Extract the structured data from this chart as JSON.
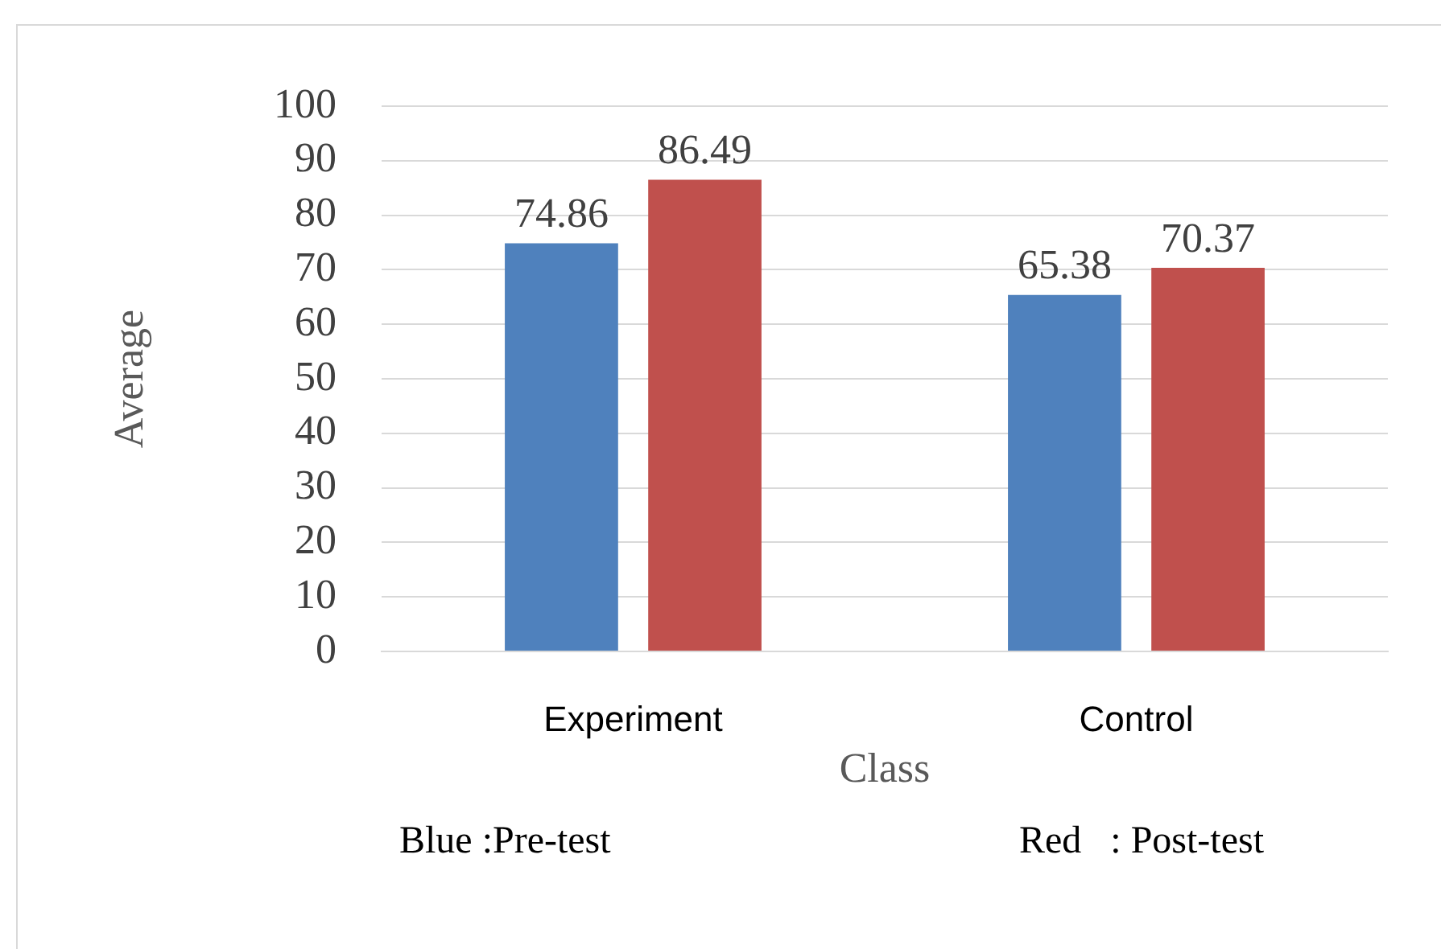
{
  "chart_data": {
    "type": "bar",
    "xlabel": "Class",
    "ylabel": "Average",
    "categories": [
      "Experiment",
      "Control"
    ],
    "series": [
      {
        "color": "#4f81bd",
        "values": [
          74.86,
          65.38
        ]
      },
      {
        "color": "#c0504d",
        "values": [
          86.49,
          70.37
        ]
      }
    ],
    "ylim": [
      0,
      100
    ],
    "yticks": [
      0,
      10,
      20,
      30,
      40,
      50,
      60,
      70,
      80,
      90,
      100
    ],
    "grid": "y",
    "legend": false,
    "data_labels": true,
    "annotations": [
      "Blue :Pre-test",
      "Red   : Post-test"
    ]
  }
}
